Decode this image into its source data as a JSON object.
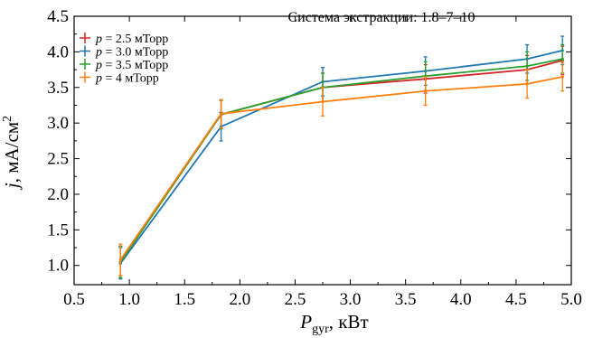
{
  "chart_data": {
    "type": "line",
    "title": "Система экстракции: 1.8–7–10",
    "xlabel_main": "P",
    "xlabel_sub": "gyr",
    "xlabel_unit": ", кВт",
    "ylabel_main": "j",
    "ylabel_unit": ", мА/см",
    "ylabel_sup": "2",
    "xlim": [
      0.5,
      5.0
    ],
    "ylim": [
      0.73,
      4.5
    ],
    "xticks": [
      0.5,
      1.0,
      1.5,
      2.0,
      2.5,
      3.0,
      3.5,
      4.0,
      4.5,
      5.0
    ],
    "xtick_labels": [
      "0.5",
      "1.0",
      "1.5",
      "2.0",
      "2.5",
      "3.0",
      "3.5",
      "4.0",
      "4.5",
      "5.0"
    ],
    "yticks": [
      1.0,
      1.5,
      2.0,
      2.5,
      3.0,
      3.5,
      4.0,
      4.5
    ],
    "ytick_labels": [
      "1.0",
      "1.5",
      "2.0",
      "2.5",
      "3.0",
      "3.5",
      "4.0",
      "4.5"
    ],
    "x": [
      0.92,
      1.83,
      2.75,
      3.68,
      4.6,
      4.92
    ],
    "legend_position": "top-left",
    "grid": false,
    "series": [
      {
        "name": "p = 2.5 мТорр",
        "legend_var": "p",
        "legend_rest": " = 2.5 мТорр",
        "color": "#d62728",
        "values": [
          1.05,
          3.12,
          3.5,
          3.62,
          3.75,
          3.88
        ],
        "errors": [
          0.22,
          0.2,
          0.2,
          0.2,
          0.2,
          0.2
        ]
      },
      {
        "name": "p = 3.0 мТорр",
        "legend_var": "p",
        "legend_rest": " = 3.0 мТорр",
        "color": "#1f77b4",
        "values": [
          1.03,
          2.95,
          3.58,
          3.73,
          3.9,
          4.02
        ],
        "errors": [
          0.22,
          0.2,
          0.2,
          0.2,
          0.2,
          0.2
        ]
      },
      {
        "name": "p = 3.5 мТорр",
        "legend_var": "p",
        "legend_rest": " = 3.5 мТорр",
        "color": "#2ca02c",
        "values": [
          1.05,
          3.12,
          3.5,
          3.66,
          3.8,
          3.9
        ],
        "errors": [
          0.22,
          0.2,
          0.2,
          0.2,
          0.2,
          0.2
        ]
      },
      {
        "name": "p = 4 мТорр",
        "legend_var": "p",
        "legend_rest": " = 4 мТорр",
        "color": "#ff7f0e",
        "values": [
          1.08,
          3.13,
          3.3,
          3.45,
          3.55,
          3.65
        ],
        "errors": [
          0.22,
          0.2,
          0.2,
          0.2,
          0.2,
          0.2
        ]
      }
    ]
  }
}
